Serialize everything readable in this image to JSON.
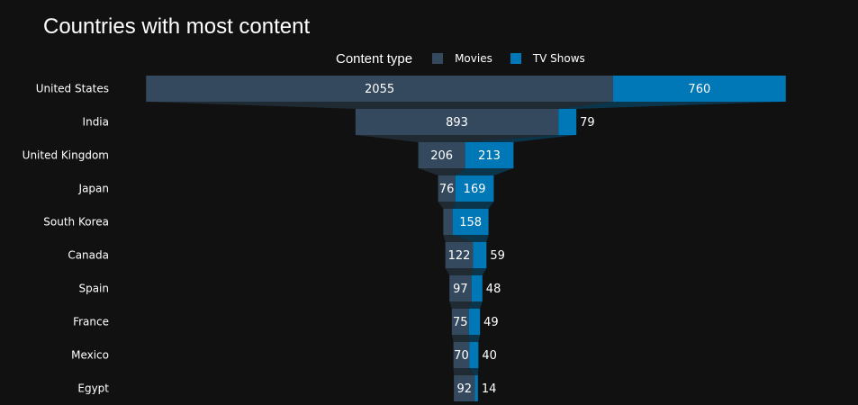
{
  "chart_data": {
    "type": "funnel",
    "title": "Countries with most content",
    "legend": {
      "title": "Content type",
      "placement": "top-center"
    },
    "categories": [
      "United States",
      "India",
      "United Kingdom",
      "Japan",
      "South Korea",
      "Canada",
      "Spain",
      "France",
      "Mexico",
      "Egypt"
    ],
    "series": [
      {
        "name": "Movies",
        "color": "#34495e",
        "values": [
          2055,
          893,
          206,
          76,
          41,
          122,
          97,
          75,
          70,
          92
        ],
        "value_labels": [
          "2055",
          "893",
          "206",
          "76",
          "",
          "122",
          "97",
          "75",
          "70",
          "92"
        ]
      },
      {
        "name": "TV Shows",
        "color": "#0077b6",
        "values": [
          760,
          79,
          213,
          169,
          158,
          59,
          48,
          49,
          40,
          14
        ],
        "value_labels": [
          "760",
          "79",
          "213",
          "169",
          "158",
          "59",
          "48",
          "49",
          "40",
          "14"
        ]
      }
    ],
    "connector_color": "#26303b"
  }
}
